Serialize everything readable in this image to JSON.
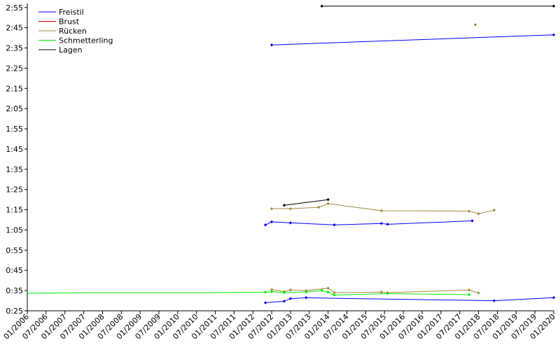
{
  "chart_data": {
    "type": "line",
    "title": "",
    "xlabel": "",
    "ylabel": "",
    "x_tick_labels": [
      "01/2006",
      "07/2006",
      "01/2007",
      "07/2007",
      "01/2008",
      "07/2008",
      "01/2009",
      "07/2009",
      "01/2010",
      "07/2010",
      "01/2011",
      "07/2011",
      "01/2012",
      "07/2012",
      "01/2013",
      "07/2013",
      "01/2014",
      "07/2014",
      "01/2015",
      "07/2015",
      "01/2016",
      "07/2016",
      "01/2017",
      "07/2017",
      "01/2018",
      "07/2018",
      "01/2019",
      "07/2019",
      "01/2020"
    ],
    "y_tick_labels": [
      "2:55",
      "2:45",
      "2:35",
      "2:25",
      "2:15",
      "2:05",
      "1:55",
      "1:45",
      "1:35",
      "1:25",
      "1:15",
      "1:05",
      "0:55",
      "0:45",
      "0:35",
      "0:25"
    ],
    "ylim": [
      "0:25",
      "2:57"
    ],
    "xlim": [
      "01/2006",
      "01/2020"
    ],
    "legend_position": "top-left",
    "grid": false,
    "series": [
      {
        "name": "Freistil",
        "color": "#0000ff",
        "lines": [
          [
            [
              "07/2012",
              "2:36.5"
            ],
            [
              "01/2020",
              "2:41.5"
            ]
          ],
          [
            [
              "05/2012",
              "1:07.5"
            ],
            [
              "07/2012",
              "1:09.0"
            ],
            [
              "01/2013",
              "1:08.5"
            ],
            [
              "03/2014",
              "1:07.5"
            ],
            [
              "06/2015",
              "1:08.2"
            ],
            [
              "08/2015",
              "1:07.8"
            ],
            [
              "11/2017",
              "1:09.5"
            ]
          ],
          [
            [
              "05/2012",
              "0:29.0"
            ],
            [
              "11/2012",
              "0:29.7"
            ],
            [
              "01/2013",
              "0:31.0"
            ],
            [
              "06/2013",
              "0:31.5"
            ],
            [
              "03/2014",
              "0:31.2"
            ],
            [
              "06/2018",
              "0:30.0"
            ],
            [
              "01/2020",
              "0:31.5"
            ]
          ]
        ],
        "points": [
          [
            "07/2012",
            "2:36.5"
          ],
          [
            "01/2020",
            "2:41.5"
          ],
          [
            "05/2012",
            "1:07.5"
          ],
          [
            "07/2012",
            "1:09.0"
          ],
          [
            "01/2013",
            "1:08.5"
          ],
          [
            "03/2014",
            "1:07.5"
          ],
          [
            "06/2015",
            "1:08.2"
          ],
          [
            "08/2015",
            "1:07.8"
          ],
          [
            "11/2017",
            "1:09.5"
          ],
          [
            "05/2012",
            "0:29.0"
          ],
          [
            "11/2012",
            "0:29.7"
          ],
          [
            "01/2013",
            "0:31.0"
          ],
          [
            "06/2013",
            "0:31.5"
          ],
          [
            "06/2018",
            "0:30.0"
          ],
          [
            "01/2020",
            "0:31.5"
          ]
        ]
      },
      {
        "name": "Brust",
        "color": "#aa0000",
        "lines": [],
        "points": []
      },
      {
        "name": "Rücken",
        "color": "#a38a3c",
        "lines": [
          [
            [
              "07/2012",
              "1:15.5"
            ],
            [
              "01/2013",
              "1:15.5"
            ],
            [
              "10/2013",
              "1:16.2"
            ],
            [
              "01/2014",
              "1:18.0"
            ],
            [
              "06/2015",
              "1:14.5"
            ],
            [
              "10/2017",
              "1:14.3"
            ],
            [
              "01/2018",
              "1:13.0"
            ],
            [
              "06/2018",
              "1:14.8"
            ]
          ],
          [
            [
              "07/2012",
              "0:35.5"
            ],
            [
              "11/2012",
              "0:34.5"
            ],
            [
              "01/2013",
              "0:35.3"
            ],
            [
              "06/2013",
              "0:35.0"
            ],
            [
              "01/2014",
              "0:36.2"
            ],
            [
              "03/2014",
              "0:34.0"
            ],
            [
              "06/2015",
              "0:34.2"
            ],
            [
              "08/2015",
              "0:34.0"
            ],
            [
              "10/2017",
              "0:35.3"
            ],
            [
              "01/2018",
              "0:33.8"
            ]
          ]
        ],
        "points": [
          [
            "12/2017",
            "2:46.5"
          ],
          [
            "07/2012",
            "1:15.5"
          ],
          [
            "01/2013",
            "1:15.5"
          ],
          [
            "10/2013",
            "1:16.2"
          ],
          [
            "01/2014",
            "1:18.0"
          ],
          [
            "06/2015",
            "1:14.5"
          ],
          [
            "10/2017",
            "1:14.3"
          ],
          [
            "01/2018",
            "1:13.0"
          ],
          [
            "06/2018",
            "1:14.8"
          ],
          [
            "07/2012",
            "0:35.5"
          ],
          [
            "11/2012",
            "0:34.5"
          ],
          [
            "01/2013",
            "0:35.3"
          ],
          [
            "06/2013",
            "0:35.0"
          ],
          [
            "01/2014",
            "0:36.2"
          ],
          [
            "03/2014",
            "0:34.0"
          ],
          [
            "06/2015",
            "0:34.2"
          ],
          [
            "08/2015",
            "0:34.0"
          ],
          [
            "10/2017",
            "0:35.3"
          ],
          [
            "01/2018",
            "0:33.8"
          ]
        ]
      },
      {
        "name": "Schmetterling",
        "color": "#00ee00",
        "lines": [
          [
            [
              "01/2006",
              "0:33.7"
            ],
            [
              "01/2008",
              "0:34.0"
            ],
            [
              "01/2011",
              "0:34.0"
            ],
            [
              "05/2012",
              "0:34.2"
            ],
            [
              "07/2012",
              "0:34.5"
            ],
            [
              "11/2012",
              "0:34.0"
            ],
            [
              "06/2013",
              "0:34.3"
            ],
            [
              "11/2013",
              "0:35.0"
            ],
            [
              "01/2014",
              "0:34.3"
            ],
            [
              "03/2014",
              "0:32.8"
            ],
            [
              "08/2015",
              "0:33.5"
            ],
            [
              "10/2017",
              "0:33.0"
            ]
          ]
        ],
        "points": [
          [
            "05/2012",
            "0:34.2"
          ],
          [
            "07/2012",
            "0:34.5"
          ],
          [
            "11/2012",
            "0:34.0"
          ],
          [
            "06/2013",
            "0:34.3"
          ],
          [
            "11/2013",
            "0:35.0"
          ],
          [
            "01/2014",
            "0:34.3"
          ],
          [
            "03/2014",
            "0:32.8"
          ],
          [
            "08/2015",
            "0:33.5"
          ],
          [
            "10/2017",
            "0:33.0"
          ]
        ]
      },
      {
        "name": "Lagen",
        "color": "#000000",
        "lines": [
          [
            [
              "11/2013",
              "2:55.7"
            ],
            [
              "01/2020",
              "2:55.7"
            ]
          ],
          [
            [
              "11/2012",
              "1:17.2"
            ],
            [
              "01/2014",
              "1:20.0"
            ]
          ]
        ],
        "points": [
          [
            "11/2013",
            "2:55.7"
          ],
          [
            "01/2020",
            "2:55.7"
          ],
          [
            "11/2012",
            "1:17.2"
          ],
          [
            "01/2014",
            "1:20.0"
          ]
        ]
      }
    ]
  }
}
